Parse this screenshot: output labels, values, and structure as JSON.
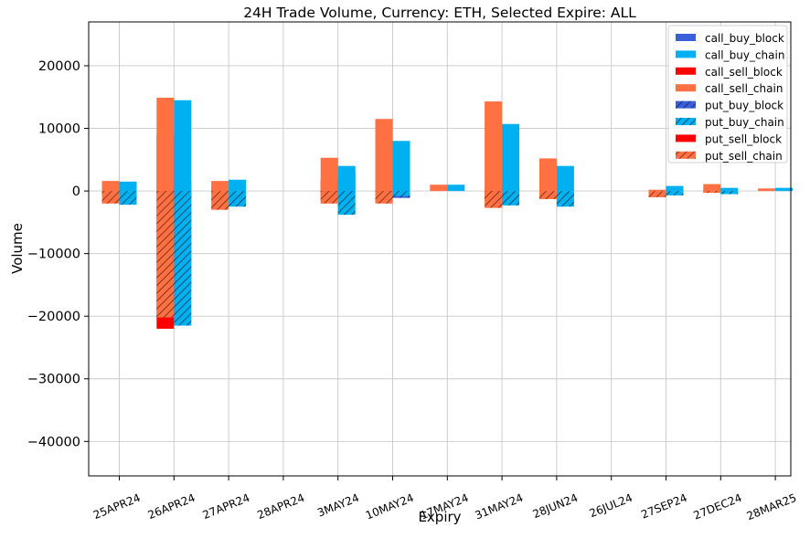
{
  "chart_data": {
    "type": "bar",
    "title": "24H Trade Volume, Currency: ETH, Selected Expire: ALL",
    "xlabel": "Expiry",
    "ylabel": "Volume",
    "ylim": [
      -45500,
      27000
    ],
    "yticks": [
      20000,
      10000,
      0,
      -10000,
      -20000,
      -30000,
      -40000
    ],
    "ytick_labels": [
      "20000",
      "10000",
      "0",
      "−10000",
      "−20000",
      "−30000",
      "−40000"
    ],
    "grid": true,
    "legend_position": "top-right",
    "categories": [
      "25APR24",
      "26APR24",
      "27APR24",
      "28APR24",
      "3MAY24",
      "10MAY24",
      "17MAY24",
      "31MAY24",
      "28JUN24",
      "26JUL24",
      "27SEP24",
      "27DEC24",
      "28MAR25"
    ],
    "series": [
      {
        "name": "call_buy_block",
        "group": "buy",
        "side": "pos",
        "color": "#3b5fd9",
        "hatch": false,
        "values": [
          0,
          1500,
          0,
          0,
          3000,
          0,
          0,
          500,
          0,
          0,
          0,
          0,
          0
        ]
      },
      {
        "name": "call_buy_chain",
        "group": "buy",
        "side": "pos",
        "color": "#00b0f0",
        "hatch": false,
        "values": [
          1500,
          14500,
          1800,
          0,
          4000,
          8000,
          1000,
          10700,
          4000,
          0,
          800,
          500,
          500
        ]
      },
      {
        "name": "call_sell_block",
        "group": "sell",
        "side": "pos",
        "color": "#ff0000",
        "hatch": false,
        "values": [
          300,
          9000,
          300,
          0,
          1800,
          0,
          0,
          500,
          0,
          0,
          0,
          200,
          0
        ]
      },
      {
        "name": "call_sell_chain",
        "group": "sell",
        "side": "pos",
        "color": "#ff7043",
        "hatch": false,
        "values": [
          1600,
          14900,
          1600,
          0,
          5300,
          11500,
          1000,
          14300,
          5200,
          0,
          200,
          1100,
          400
        ]
      },
      {
        "name": "put_buy_block",
        "group": "buy",
        "side": "neg",
        "color": "#3b5fd9",
        "hatch": true,
        "values": [
          0,
          -15500,
          0,
          0,
          -200,
          -1100,
          0,
          0,
          0,
          0,
          0,
          0,
          0
        ]
      },
      {
        "name": "put_buy_chain",
        "group": "buy",
        "side": "neg",
        "color": "#00b0f0",
        "hatch": true,
        "values": [
          -2200,
          -21500,
          -2500,
          0,
          -3800,
          -800,
          0,
          -2300,
          -2500,
          0,
          -700,
          -500,
          0
        ]
      },
      {
        "name": "put_sell_block",
        "group": "sell",
        "side": "neg",
        "color": "#ff0000",
        "hatch": false,
        "values": [
          0,
          -22000,
          0,
          0,
          -1500,
          -1500,
          0,
          -1500,
          0,
          0,
          0,
          0,
          0
        ]
      },
      {
        "name": "put_sell_chain",
        "group": "sell",
        "side": "neg",
        "color": "#ff7043",
        "hatch": true,
        "values": [
          -2000,
          -20200,
          -3000,
          0,
          -2000,
          -2000,
          0,
          -2700,
          -1300,
          0,
          -1000,
          -300,
          0
        ]
      }
    ]
  }
}
